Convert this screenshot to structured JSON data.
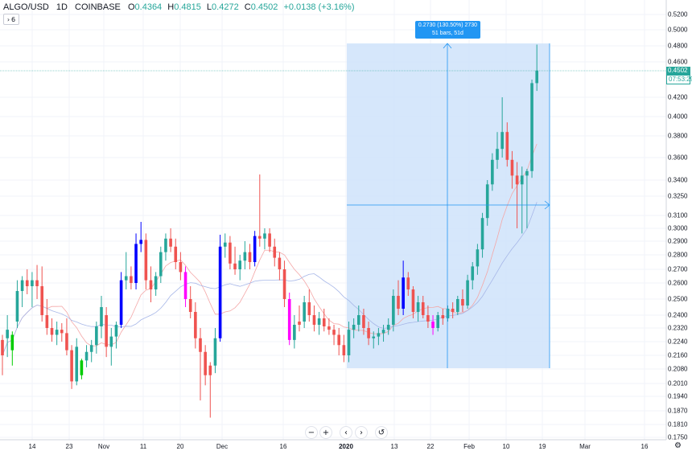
{
  "header": {
    "symbol": "ALGO/USD",
    "interval": "1D",
    "exchange": "COINBASE",
    "open_label": "O",
    "open": "0.4364",
    "high_label": "H",
    "high": "0.4815",
    "low_label": "L",
    "low": "0.4272",
    "close_label": "C",
    "close": "0.4502",
    "change": "+0.0138 (+3.16%)"
  },
  "indicator_toggle": {
    "icon": "chevron-right-icon",
    "count": "6"
  },
  "price_axis": {
    "labels": [
      "0.5200",
      "0.5000",
      "0.4800",
      "0.4600",
      "0.4200",
      "0.4000",
      "0.3800",
      "0.3600",
      "0.3400",
      "0.3250",
      "0.3100",
      "0.3000",
      "0.2900",
      "0.2800",
      "0.2700",
      "0.2600",
      "0.2500",
      "0.2400",
      "0.2320",
      "0.2240",
      "0.2160",
      "0.2080",
      "0.2010",
      "0.1940",
      "0.1870",
      "0.1810",
      "0.1750"
    ]
  },
  "last_price": {
    "price": "0.4502",
    "countdown": "07:53:29",
    "color": "#26a69a"
  },
  "time_axis": {
    "labels": [
      "14",
      "23",
      "Nov",
      "11",
      "20",
      "Dec",
      "16",
      "2020",
      "13",
      "22",
      "Feb",
      "10",
      "19",
      "Mar",
      "16"
    ]
  },
  "measure_tool": {
    "line1": "0.2730 (130.50%) 2730",
    "line2": "51 bars, 51d",
    "fill": "#cfe3fa",
    "accent": "#2196f3"
  },
  "nav_controls": {
    "zoom_out": "−",
    "zoom_in": "+",
    "scroll_left": "‹",
    "scroll_right": "›",
    "reset": "↺",
    "settings_icon": "gear-icon",
    "settings_glyph": "⚙"
  },
  "colors": {
    "up": "#26a69a",
    "down": "#ef5350",
    "up_custom": "#0000ff",
    "down_custom": "#ff00ff",
    "green_custom": "#00cc00",
    "ma1": "#f4a7a7",
    "ma2": "#a7b7e8"
  },
  "chart_data": {
    "type": "candlestick",
    "ylim": [
      0.175,
      0.52
    ],
    "candles": [
      {
        "o": 0.225,
        "h": 0.228,
        "l": 0.205,
        "c": 0.216,
        "color": "down"
      },
      {
        "o": 0.226,
        "h": 0.24,
        "l": 0.215,
        "c": 0.231,
        "color": "up"
      },
      {
        "o": 0.219,
        "h": 0.23,
        "l": 0.21,
        "c": 0.228,
        "color": "green_custom"
      },
      {
        "o": 0.236,
        "h": 0.262,
        "l": 0.232,
        "c": 0.255,
        "color": "up"
      },
      {
        "o": 0.255,
        "h": 0.265,
        "l": 0.245,
        "c": 0.262,
        "color": "up"
      },
      {
        "o": 0.262,
        "h": 0.27,
        "l": 0.253,
        "c": 0.258,
        "color": "down"
      },
      {
        "o": 0.258,
        "h": 0.268,
        "l": 0.245,
        "c": 0.262,
        "color": "up"
      },
      {
        "o": 0.262,
        "h": 0.273,
        "l": 0.25,
        "c": 0.258,
        "color": "down"
      },
      {
        "o": 0.258,
        "h": 0.272,
        "l": 0.236,
        "c": 0.24,
        "color": "down"
      },
      {
        "o": 0.24,
        "h": 0.25,
        "l": 0.228,
        "c": 0.232,
        "color": "down"
      },
      {
        "o": 0.232,
        "h": 0.238,
        "l": 0.224,
        "c": 0.228,
        "color": "down"
      },
      {
        "o": 0.228,
        "h": 0.236,
        "l": 0.222,
        "c": 0.231,
        "color": "up"
      },
      {
        "o": 0.231,
        "h": 0.235,
        "l": 0.224,
        "c": 0.229,
        "color": "down"
      },
      {
        "o": 0.229,
        "h": 0.238,
        "l": 0.216,
        "c": 0.219,
        "color": "down"
      },
      {
        "o": 0.219,
        "h": 0.222,
        "l": 0.198,
        "c": 0.202,
        "color": "down"
      },
      {
        "o": 0.202,
        "h": 0.226,
        "l": 0.2,
        "c": 0.221,
        "color": "up"
      },
      {
        "o": 0.205,
        "h": 0.214,
        "l": 0.203,
        "c": 0.213,
        "color": "green_custom"
      },
      {
        "o": 0.213,
        "h": 0.222,
        "l": 0.209,
        "c": 0.218,
        "color": "up"
      },
      {
        "o": 0.218,
        "h": 0.225,
        "l": 0.212,
        "c": 0.222,
        "color": "up"
      },
      {
        "o": 0.222,
        "h": 0.236,
        "l": 0.217,
        "c": 0.233,
        "color": "up"
      },
      {
        "o": 0.233,
        "h": 0.252,
        "l": 0.226,
        "c": 0.245,
        "color": "up"
      },
      {
        "o": 0.24,
        "h": 0.245,
        "l": 0.215,
        "c": 0.221,
        "color": "down"
      },
      {
        "o": 0.221,
        "h": 0.232,
        "l": 0.21,
        "c": 0.227,
        "color": "up"
      },
      {
        "o": 0.227,
        "h": 0.236,
        "l": 0.22,
        "c": 0.234,
        "color": "up"
      },
      {
        "o": 0.234,
        "h": 0.268,
        "l": 0.232,
        "c": 0.262,
        "color": "up_custom"
      },
      {
        "o": 0.262,
        "h": 0.282,
        "l": 0.256,
        "c": 0.265,
        "color": "up"
      },
      {
        "o": 0.265,
        "h": 0.272,
        "l": 0.256,
        "c": 0.26,
        "color": "down"
      },
      {
        "o": 0.26,
        "h": 0.296,
        "l": 0.256,
        "c": 0.288,
        "color": "up_custom"
      },
      {
        "o": 0.288,
        "h": 0.305,
        "l": 0.282,
        "c": 0.291,
        "color": "up_custom"
      },
      {
        "o": 0.291,
        "h": 0.296,
        "l": 0.256,
        "c": 0.262,
        "color": "down"
      },
      {
        "o": 0.262,
        "h": 0.272,
        "l": 0.248,
        "c": 0.256,
        "color": "down"
      },
      {
        "o": 0.256,
        "h": 0.268,
        "l": 0.252,
        "c": 0.265,
        "color": "up"
      },
      {
        "o": 0.265,
        "h": 0.286,
        "l": 0.26,
        "c": 0.282,
        "color": "up"
      },
      {
        "o": 0.282,
        "h": 0.296,
        "l": 0.276,
        "c": 0.292,
        "color": "up"
      },
      {
        "o": 0.292,
        "h": 0.3,
        "l": 0.282,
        "c": 0.286,
        "color": "down"
      },
      {
        "o": 0.286,
        "h": 0.292,
        "l": 0.27,
        "c": 0.275,
        "color": "down"
      },
      {
        "o": 0.275,
        "h": 0.282,
        "l": 0.262,
        "c": 0.268,
        "color": "down"
      },
      {
        "o": 0.268,
        "h": 0.272,
        "l": 0.245,
        "c": 0.25,
        "color": "down_custom"
      },
      {
        "o": 0.25,
        "h": 0.258,
        "l": 0.238,
        "c": 0.242,
        "color": "down"
      },
      {
        "o": 0.242,
        "h": 0.248,
        "l": 0.22,
        "c": 0.226,
        "color": "down"
      },
      {
        "o": 0.226,
        "h": 0.232,
        "l": 0.192,
        "c": 0.218,
        "color": "down"
      },
      {
        "o": 0.218,
        "h": 0.222,
        "l": 0.2,
        "c": 0.205,
        "color": "down"
      },
      {
        "o": 0.205,
        "h": 0.212,
        "l": 0.184,
        "c": 0.21,
        "color": "down"
      },
      {
        "o": 0.21,
        "h": 0.232,
        "l": 0.206,
        "c": 0.226,
        "color": "up"
      },
      {
        "o": 0.226,
        "h": 0.295,
        "l": 0.224,
        "c": 0.286,
        "color": "up_custom"
      },
      {
        "o": 0.286,
        "h": 0.296,
        "l": 0.278,
        "c": 0.289,
        "color": "up"
      },
      {
        "o": 0.289,
        "h": 0.294,
        "l": 0.27,
        "c": 0.274,
        "color": "down"
      },
      {
        "o": 0.274,
        "h": 0.286,
        "l": 0.266,
        "c": 0.27,
        "color": "down"
      },
      {
        "o": 0.27,
        "h": 0.28,
        "l": 0.262,
        "c": 0.276,
        "color": "up"
      },
      {
        "o": 0.276,
        "h": 0.29,
        "l": 0.27,
        "c": 0.282,
        "color": "up"
      },
      {
        "o": 0.282,
        "h": 0.288,
        "l": 0.27,
        "c": 0.275,
        "color": "down"
      },
      {
        "o": 0.275,
        "h": 0.298,
        "l": 0.272,
        "c": 0.294,
        "color": "up_custom"
      },
      {
        "o": 0.294,
        "h": 0.345,
        "l": 0.286,
        "c": 0.292,
        "color": "down"
      },
      {
        "o": 0.292,
        "h": 0.3,
        "l": 0.284,
        "c": 0.296,
        "color": "up"
      },
      {
        "o": 0.296,
        "h": 0.3,
        "l": 0.282,
        "c": 0.286,
        "color": "down"
      },
      {
        "o": 0.286,
        "h": 0.292,
        "l": 0.272,
        "c": 0.278,
        "color": "down"
      },
      {
        "o": 0.278,
        "h": 0.282,
        "l": 0.262,
        "c": 0.27,
        "color": "down"
      },
      {
        "o": 0.27,
        "h": 0.276,
        "l": 0.245,
        "c": 0.25,
        "color": "down"
      },
      {
        "o": 0.25,
        "h": 0.254,
        "l": 0.222,
        "c": 0.225,
        "color": "down_custom"
      },
      {
        "o": 0.225,
        "h": 0.24,
        "l": 0.22,
        "c": 0.234,
        "color": "up"
      },
      {
        "o": 0.234,
        "h": 0.246,
        "l": 0.23,
        "c": 0.236,
        "color": "down"
      },
      {
        "o": 0.236,
        "h": 0.252,
        "l": 0.232,
        "c": 0.248,
        "color": "up"
      },
      {
        "o": 0.248,
        "h": 0.256,
        "l": 0.236,
        "c": 0.24,
        "color": "down"
      },
      {
        "o": 0.24,
        "h": 0.246,
        "l": 0.23,
        "c": 0.234,
        "color": "down"
      },
      {
        "o": 0.234,
        "h": 0.242,
        "l": 0.228,
        "c": 0.238,
        "color": "up"
      },
      {
        "o": 0.238,
        "h": 0.244,
        "l": 0.23,
        "c": 0.233,
        "color": "down"
      },
      {
        "o": 0.233,
        "h": 0.238,
        "l": 0.228,
        "c": 0.231,
        "color": "down"
      },
      {
        "o": 0.231,
        "h": 0.234,
        "l": 0.222,
        "c": 0.228,
        "color": "down"
      },
      {
        "o": 0.228,
        "h": 0.232,
        "l": 0.216,
        "c": 0.222,
        "color": "down"
      },
      {
        "o": 0.222,
        "h": 0.228,
        "l": 0.212,
        "c": 0.216,
        "color": "down"
      },
      {
        "o": 0.216,
        "h": 0.236,
        "l": 0.212,
        "c": 0.231,
        "color": "up"
      },
      {
        "o": 0.231,
        "h": 0.238,
        "l": 0.226,
        "c": 0.234,
        "color": "up"
      },
      {
        "o": 0.234,
        "h": 0.246,
        "l": 0.23,
        "c": 0.24,
        "color": "up"
      },
      {
        "o": 0.24,
        "h": 0.244,
        "l": 0.228,
        "c": 0.232,
        "color": "down"
      },
      {
        "o": 0.232,
        "h": 0.236,
        "l": 0.222,
        "c": 0.226,
        "color": "down"
      },
      {
        "o": 0.226,
        "h": 0.23,
        "l": 0.22,
        "c": 0.227,
        "color": "up"
      },
      {
        "o": 0.227,
        "h": 0.232,
        "l": 0.222,
        "c": 0.229,
        "color": "up"
      },
      {
        "o": 0.229,
        "h": 0.234,
        "l": 0.224,
        "c": 0.231,
        "color": "up"
      },
      {
        "o": 0.231,
        "h": 0.238,
        "l": 0.228,
        "c": 0.234,
        "color": "up"
      },
      {
        "o": 0.234,
        "h": 0.256,
        "l": 0.23,
        "c": 0.252,
        "color": "up"
      },
      {
        "o": 0.252,
        "h": 0.262,
        "l": 0.24,
        "c": 0.244,
        "color": "down"
      },
      {
        "o": 0.244,
        "h": 0.276,
        "l": 0.24,
        "c": 0.264,
        "color": "up_custom"
      },
      {
        "o": 0.264,
        "h": 0.268,
        "l": 0.252,
        "c": 0.256,
        "color": "down"
      },
      {
        "o": 0.256,
        "h": 0.258,
        "l": 0.238,
        "c": 0.242,
        "color": "down"
      },
      {
        "o": 0.242,
        "h": 0.252,
        "l": 0.236,
        "c": 0.248,
        "color": "up"
      },
      {
        "o": 0.248,
        "h": 0.252,
        "l": 0.238,
        "c": 0.24,
        "color": "down"
      },
      {
        "o": 0.24,
        "h": 0.246,
        "l": 0.232,
        "c": 0.236,
        "color": "down"
      },
      {
        "o": 0.236,
        "h": 0.24,
        "l": 0.228,
        "c": 0.232,
        "color": "down_custom"
      },
      {
        "o": 0.232,
        "h": 0.242,
        "l": 0.23,
        "c": 0.24,
        "color": "up"
      },
      {
        "o": 0.24,
        "h": 0.244,
        "l": 0.234,
        "c": 0.238,
        "color": "down"
      },
      {
        "o": 0.238,
        "h": 0.246,
        "l": 0.236,
        "c": 0.244,
        "color": "up"
      },
      {
        "o": 0.244,
        "h": 0.248,
        "l": 0.238,
        "c": 0.242,
        "color": "down"
      },
      {
        "o": 0.242,
        "h": 0.252,
        "l": 0.24,
        "c": 0.25,
        "color": "up"
      },
      {
        "o": 0.25,
        "h": 0.256,
        "l": 0.242,
        "c": 0.246,
        "color": "down"
      },
      {
        "o": 0.246,
        "h": 0.266,
        "l": 0.244,
        "c": 0.262,
        "color": "up"
      },
      {
        "o": 0.262,
        "h": 0.275,
        "l": 0.256,
        "c": 0.272,
        "color": "up"
      },
      {
        "o": 0.272,
        "h": 0.288,
        "l": 0.266,
        "c": 0.284,
        "color": "up"
      },
      {
        "o": 0.284,
        "h": 0.312,
        "l": 0.278,
        "c": 0.308,
        "color": "up"
      },
      {
        "o": 0.308,
        "h": 0.34,
        "l": 0.302,
        "c": 0.336,
        "color": "up"
      },
      {
        "o": 0.336,
        "h": 0.364,
        "l": 0.33,
        "c": 0.358,
        "color": "up"
      },
      {
        "o": 0.358,
        "h": 0.384,
        "l": 0.35,
        "c": 0.368,
        "color": "up"
      },
      {
        "o": 0.368,
        "h": 0.42,
        "l": 0.36,
        "c": 0.384,
        "color": "up"
      },
      {
        "o": 0.384,
        "h": 0.394,
        "l": 0.352,
        "c": 0.358,
        "color": "down"
      },
      {
        "o": 0.358,
        "h": 0.366,
        "l": 0.332,
        "c": 0.344,
        "color": "down"
      },
      {
        "o": 0.344,
        "h": 0.356,
        "l": 0.3,
        "c": 0.336,
        "color": "down"
      },
      {
        "o": 0.336,
        "h": 0.352,
        "l": 0.296,
        "c": 0.344,
        "color": "up"
      },
      {
        "o": 0.344,
        "h": 0.35,
        "l": 0.3,
        "c": 0.348,
        "color": "up"
      },
      {
        "o": 0.348,
        "h": 0.44,
        "l": 0.342,
        "c": 0.436,
        "color": "up"
      },
      {
        "o": 0.436,
        "h": 0.4815,
        "l": 0.4272,
        "c": 0.4502,
        "color": "up"
      }
    ]
  }
}
